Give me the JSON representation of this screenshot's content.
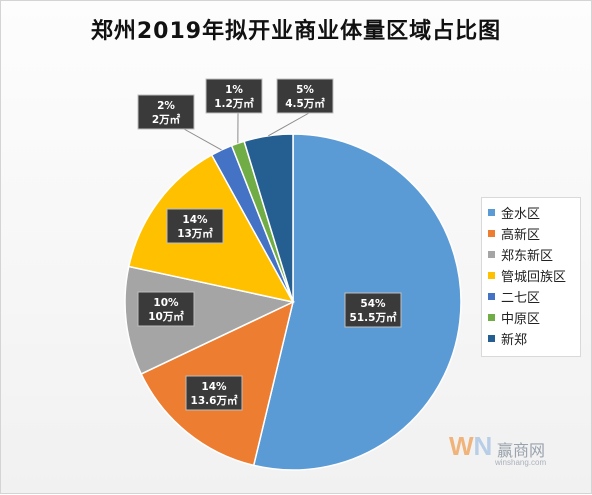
{
  "chart_data": {
    "type": "pie",
    "title": "郑州2019年拟开业商业体量区域占比图",
    "unit": "万㎡",
    "slices": [
      {
        "name": "金水区",
        "percent_label": "54%",
        "value": 51.5,
        "value_label": "51.5万㎡",
        "color": "#5b9bd5"
      },
      {
        "name": "高新区",
        "percent_label": "14%",
        "value": 13.6,
        "value_label": "13.6万㎡",
        "color": "#ed7d31"
      },
      {
        "name": "郑东新区",
        "percent_label": "10%",
        "value": 10,
        "value_label": "10万㎡",
        "color": "#a5a5a5"
      },
      {
        "name": "管城回族区",
        "percent_label": "14%",
        "value": 13,
        "value_label": "13万㎡",
        "color": "#ffc000"
      },
      {
        "name": "二七区",
        "percent_label": "2%",
        "value": 2,
        "value_label": "2万㎡",
        "color": "#4472c4"
      },
      {
        "name": "中原区",
        "percent_label": "1%",
        "value": 1.2,
        "value_label": "1.2万㎡",
        "color": "#70ad47"
      },
      {
        "name": "新郑",
        "percent_label": "5%",
        "value": 4.5,
        "value_label": "4.5万㎡",
        "color": "#255e91"
      }
    ],
    "legend": [
      "金水区",
      "高新区",
      "郑东新区",
      "管城回族区",
      "二七区",
      "中原区",
      "新郑"
    ],
    "legend_position": "right"
  },
  "watermark": {
    "logo_w": "W",
    "logo_n": "N",
    "name": "赢商网",
    "site": "winshang.com"
  }
}
